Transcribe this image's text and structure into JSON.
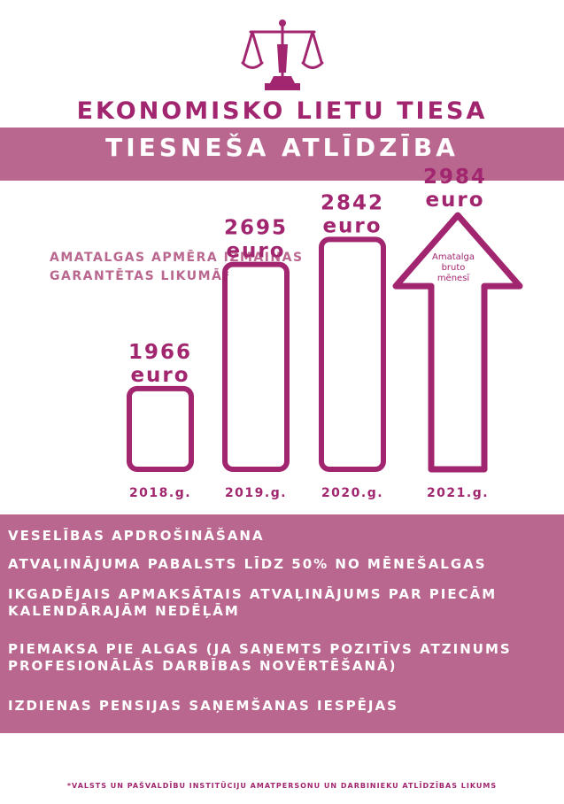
{
  "header": {
    "logo_icon": "scales-of-justice-icon",
    "title": "EKONOMISKO LIETU TIESA",
    "subtitle": "TIESNEŠA ATLĪDZĪBA"
  },
  "colors": {
    "accent": "#a1266f",
    "band": "#b9678f",
    "text_on_band": "#ffffff"
  },
  "note": {
    "line1": "AMATALGAS APMĒRA IZMAIŅAS",
    "line2": "GARANTĒTAS LIKUMĀ*"
  },
  "chart_data": {
    "type": "bar",
    "categories": [
      "2018.g.",
      "2019.g.",
      "2020.g.",
      "2021.g."
    ],
    "values": [
      1966,
      2695,
      2842,
      2984
    ],
    "unit": "euro",
    "value_labels": [
      "1966",
      "2695",
      "2842",
      "2984"
    ],
    "last_bar_shape": "arrow",
    "arrow_annotation": [
      "Amatalga",
      "bruto",
      "mēnesī"
    ]
  },
  "benefits": [
    "VESELĪBAS APDROŠINĀŠANA",
    "ATVAĻINĀJUMA PABALSTS LĪDZ 50% NO MĒNEŠALGAS",
    "IKGADĒJAIS APMAKSĀTAIS ATVAĻINĀJUMS PAR PIECĀM",
    "KALENDĀRAJĀM NEDĒĻĀM",
    "PIEMAKSA PIE ALGAS (JA SAŅEMTS POZITĪVS ATZINUMS",
    "PROFESIONĀLĀS DARBĪBAS NOVĒRTĒŠANĀ)",
    "IZDIENAS PENSIJAS SAŅEMŠANAS IESPĒJAS"
  ],
  "footnote": "*VALSTS UN PAŠVALDĪBU INSTITŪCIJU AMATPERSONU UN DARBINIEKU ATLĪDZĪBAS LIKUMS"
}
